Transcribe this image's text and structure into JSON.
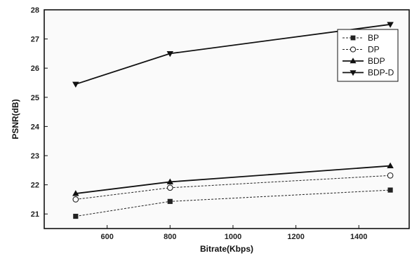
{
  "chart_data": {
    "type": "line",
    "xlabel": "Bitrate(Kbps)",
    "ylabel": "PSNR(dB)",
    "xlim": [
      400,
      1560
    ],
    "ylim": [
      20.5,
      28
    ],
    "xticks": [
      600,
      800,
      1000,
      1200,
      1400
    ],
    "yticks": [
      21,
      22,
      23,
      24,
      25,
      26,
      27,
      28
    ],
    "grid": false,
    "legend_position": "top-right",
    "x": [
      500,
      800,
      1500
    ],
    "series": [
      {
        "name": "BP",
        "values": [
          20.92,
          21.43,
          21.82
        ],
        "marker": "square",
        "fill": true,
        "dash": true,
        "color": "#222222"
      },
      {
        "name": "DP",
        "values": [
          21.5,
          21.9,
          22.32
        ],
        "marker": "circle",
        "fill": false,
        "dash": true,
        "color": "#222222"
      },
      {
        "name": "BDP",
        "values": [
          21.7,
          22.1,
          22.65
        ],
        "marker": "triangle-up",
        "fill": true,
        "dash": false,
        "color": "#111111"
      },
      {
        "name": "BDP-D",
        "values": [
          25.45,
          26.5,
          27.5
        ],
        "marker": "triangle-down",
        "fill": true,
        "dash": false,
        "color": "#111111"
      }
    ]
  }
}
